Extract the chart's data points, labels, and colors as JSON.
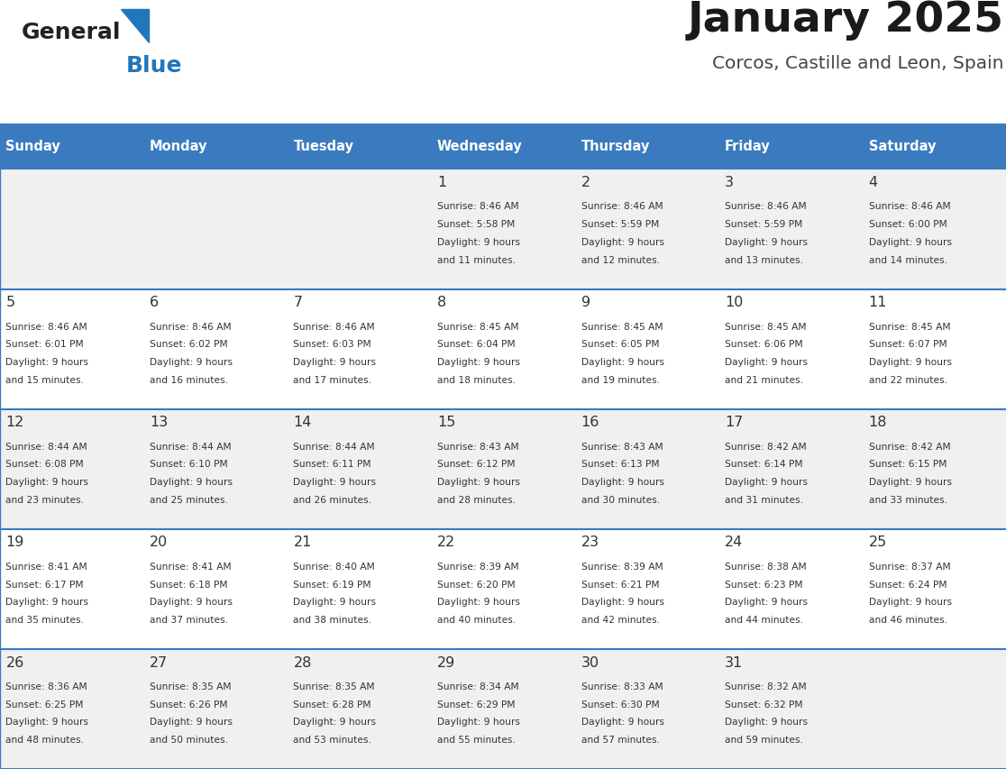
{
  "title": "January 2025",
  "subtitle": "Corcos, Castille and Leon, Spain",
  "days_of_week": [
    "Sunday",
    "Monday",
    "Tuesday",
    "Wednesday",
    "Thursday",
    "Friday",
    "Saturday"
  ],
  "header_bg": "#3a7bbf",
  "header_text": "#ffffff",
  "row_bg_odd": "#f0f0f0",
  "row_bg_even": "#ffffff",
  "cell_text_color": "#333333",
  "day_num_color": "#333333",
  "divider_color": "#3a7bbf",
  "logo_general_color": "#222222",
  "logo_blue_color": "#2277bb",
  "calendar_data": [
    [
      null,
      null,
      null,
      {
        "day": 1,
        "sunrise": "8:46 AM",
        "sunset": "5:58 PM",
        "daylight": "9 hours and 11 minutes"
      },
      {
        "day": 2,
        "sunrise": "8:46 AM",
        "sunset": "5:59 PM",
        "daylight": "9 hours and 12 minutes"
      },
      {
        "day": 3,
        "sunrise": "8:46 AM",
        "sunset": "5:59 PM",
        "daylight": "9 hours and 13 minutes"
      },
      {
        "day": 4,
        "sunrise": "8:46 AM",
        "sunset": "6:00 PM",
        "daylight": "9 hours and 14 minutes"
      }
    ],
    [
      {
        "day": 5,
        "sunrise": "8:46 AM",
        "sunset": "6:01 PM",
        "daylight": "9 hours and 15 minutes"
      },
      {
        "day": 6,
        "sunrise": "8:46 AM",
        "sunset": "6:02 PM",
        "daylight": "9 hours and 16 minutes"
      },
      {
        "day": 7,
        "sunrise": "8:46 AM",
        "sunset": "6:03 PM",
        "daylight": "9 hours and 17 minutes"
      },
      {
        "day": 8,
        "sunrise": "8:45 AM",
        "sunset": "6:04 PM",
        "daylight": "9 hours and 18 minutes"
      },
      {
        "day": 9,
        "sunrise": "8:45 AM",
        "sunset": "6:05 PM",
        "daylight": "9 hours and 19 minutes"
      },
      {
        "day": 10,
        "sunrise": "8:45 AM",
        "sunset": "6:06 PM",
        "daylight": "9 hours and 21 minutes"
      },
      {
        "day": 11,
        "sunrise": "8:45 AM",
        "sunset": "6:07 PM",
        "daylight": "9 hours and 22 minutes"
      }
    ],
    [
      {
        "day": 12,
        "sunrise": "8:44 AM",
        "sunset": "6:08 PM",
        "daylight": "9 hours and 23 minutes"
      },
      {
        "day": 13,
        "sunrise": "8:44 AM",
        "sunset": "6:10 PM",
        "daylight": "9 hours and 25 minutes"
      },
      {
        "day": 14,
        "sunrise": "8:44 AM",
        "sunset": "6:11 PM",
        "daylight": "9 hours and 26 minutes"
      },
      {
        "day": 15,
        "sunrise": "8:43 AM",
        "sunset": "6:12 PM",
        "daylight": "9 hours and 28 minutes"
      },
      {
        "day": 16,
        "sunrise": "8:43 AM",
        "sunset": "6:13 PM",
        "daylight": "9 hours and 30 minutes"
      },
      {
        "day": 17,
        "sunrise": "8:42 AM",
        "sunset": "6:14 PM",
        "daylight": "9 hours and 31 minutes"
      },
      {
        "day": 18,
        "sunrise": "8:42 AM",
        "sunset": "6:15 PM",
        "daylight": "9 hours and 33 minutes"
      }
    ],
    [
      {
        "day": 19,
        "sunrise": "8:41 AM",
        "sunset": "6:17 PM",
        "daylight": "9 hours and 35 minutes"
      },
      {
        "day": 20,
        "sunrise": "8:41 AM",
        "sunset": "6:18 PM",
        "daylight": "9 hours and 37 minutes"
      },
      {
        "day": 21,
        "sunrise": "8:40 AM",
        "sunset": "6:19 PM",
        "daylight": "9 hours and 38 minutes"
      },
      {
        "day": 22,
        "sunrise": "8:39 AM",
        "sunset": "6:20 PM",
        "daylight": "9 hours and 40 minutes"
      },
      {
        "day": 23,
        "sunrise": "8:39 AM",
        "sunset": "6:21 PM",
        "daylight": "9 hours and 42 minutes"
      },
      {
        "day": 24,
        "sunrise": "8:38 AM",
        "sunset": "6:23 PM",
        "daylight": "9 hours and 44 minutes"
      },
      {
        "day": 25,
        "sunrise": "8:37 AM",
        "sunset": "6:24 PM",
        "daylight": "9 hours and 46 minutes"
      }
    ],
    [
      {
        "day": 26,
        "sunrise": "8:36 AM",
        "sunset": "6:25 PM",
        "daylight": "9 hours and 48 minutes"
      },
      {
        "day": 27,
        "sunrise": "8:35 AM",
        "sunset": "6:26 PM",
        "daylight": "9 hours and 50 minutes"
      },
      {
        "day": 28,
        "sunrise": "8:35 AM",
        "sunset": "6:28 PM",
        "daylight": "9 hours and 53 minutes"
      },
      {
        "day": 29,
        "sunrise": "8:34 AM",
        "sunset": "6:29 PM",
        "daylight": "9 hours and 55 minutes"
      },
      {
        "day": 30,
        "sunrise": "8:33 AM",
        "sunset": "6:30 PM",
        "daylight": "9 hours and 57 minutes"
      },
      {
        "day": 31,
        "sunrise": "8:32 AM",
        "sunset": "6:32 PM",
        "daylight": "9 hours and 59 minutes"
      },
      null
    ]
  ]
}
